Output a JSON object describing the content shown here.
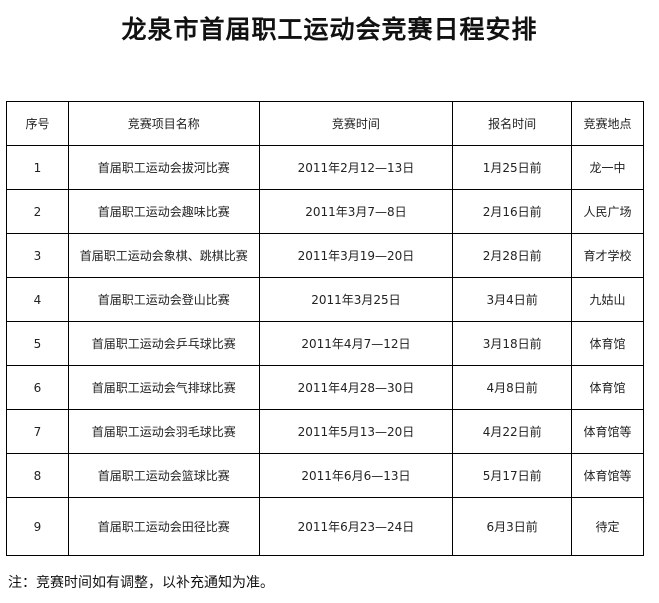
{
  "title": "龙泉市首届职工运动会竞赛日程安排",
  "table": {
    "headers": [
      "序号",
      "竞赛项目名称",
      "竞赛时间",
      "报名时间",
      "竞赛地点"
    ],
    "rows": [
      [
        "1",
        "首届职工运动会拔河比赛",
        "2011年2月12—13日",
        "1月25日前",
        "龙一中"
      ],
      [
        "2",
        "首届职工运动会趣味比赛",
        "2011年3月7—8日",
        "2月16日前",
        "人民广场"
      ],
      [
        "3",
        "首届职工运动会象棋、跳棋比赛",
        "2011年3月19—20日",
        "2月28日前",
        "育才学校"
      ],
      [
        "4",
        "首届职工运动会登山比赛",
        "2011年3月25日",
        "3月4日前",
        "九姑山"
      ],
      [
        "5",
        "首届职工运动会乒乓球比赛",
        "2011年4月7—12日",
        "3月18日前",
        "体育馆"
      ],
      [
        "6",
        "首届职工运动会气排球比赛",
        "2011年4月28—30日",
        "4月8日前",
        "体育馆"
      ],
      [
        "7",
        "首届职工运动会羽毛球比赛",
        "2011年5月13—20日",
        "4月22日前",
        "体育馆等"
      ],
      [
        "8",
        "首届职工运动会篮球比赛",
        "2011年6月6—13日",
        "5月17日前",
        "体育馆等"
      ],
      [
        "9",
        "首届职工运动会田径比赛",
        "2011年6月23—24日",
        "6月3日前",
        "待定"
      ]
    ]
  },
  "note": "注：竞赛时间如有调整，以补充通知为准。"
}
